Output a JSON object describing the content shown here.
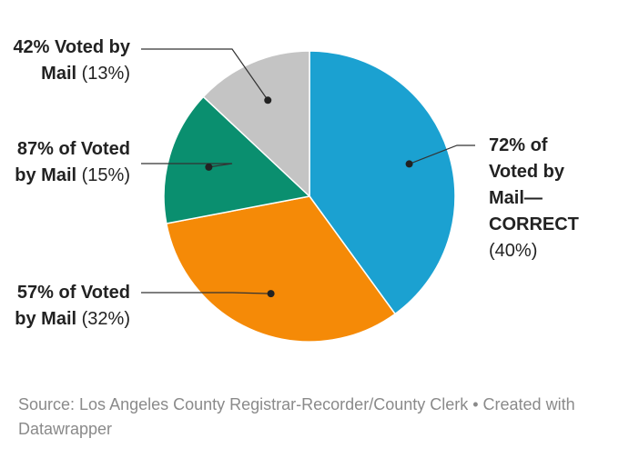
{
  "chart_data": {
    "type": "pie",
    "categories": [
      "72% of Voted by Mail—CORRECT",
      "57% of Voted by Mail",
      "87% of Voted by Mail",
      "42% Voted by Mail"
    ],
    "values": [
      40,
      32,
      15,
      13
    ],
    "value_labels": [
      "(40%)",
      "(32%)",
      "(15%)",
      "(13%)"
    ],
    "colors": [
      "#1ba1d1",
      "#f58a07",
      "#0a8f6f",
      "#c4c4c4"
    ],
    "source": "Source: Los Angeles County Registrar-Recorder/County Clerk • Created with Datawrapper"
  }
}
